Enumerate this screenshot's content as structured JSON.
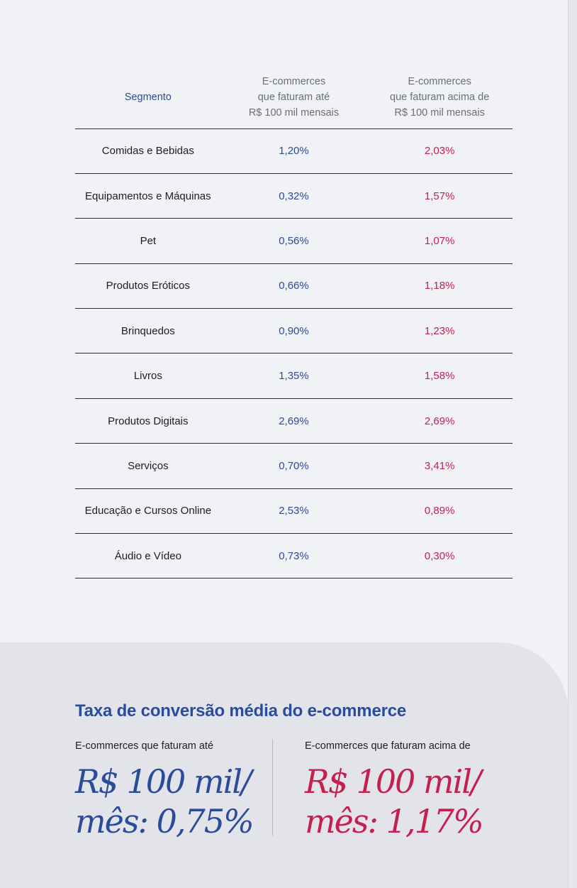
{
  "table": {
    "headers": {
      "segment": "Segmento",
      "low": [
        "E-commerces",
        "que faturam até",
        "R$ 100 mil mensais"
      ],
      "high": [
        "E-commerces",
        "que faturam acima de",
        "R$ 100 mil mensais"
      ]
    },
    "rows": [
      {
        "segment": "Comidas e Bebidas",
        "low": "1,20%",
        "high": "2,03%"
      },
      {
        "segment": "Equipamentos e Máquinas",
        "low": "0,32%",
        "high": "1,57%"
      },
      {
        "segment": "Pet",
        "low": "0,56%",
        "high": "1,07%"
      },
      {
        "segment": "Produtos Eróticos",
        "low": "0,66%",
        "high": "1,18%"
      },
      {
        "segment": "Brinquedos",
        "low": "0,90%",
        "high": "1,23%"
      },
      {
        "segment": "Livros",
        "low": "1,35%",
        "high": "1,58%"
      },
      {
        "segment": "Produtos Digitais",
        "low": "2,69%",
        "high": "2,69%"
      },
      {
        "segment": "Serviços",
        "low": "0,70%",
        "high": "3,41%"
      },
      {
        "segment": "Educação e Cursos Online",
        "low": "2,53%",
        "high": "0,89%"
      },
      {
        "segment": "Áudio e Vídeo",
        "low": "0,73%",
        "high": "0,30%"
      }
    ]
  },
  "summary": {
    "title": "Taxa de conversão média do e-commerce",
    "left": {
      "label": "E-commerces que faturam até",
      "line1": "R$ 100 mil/",
      "line2": "mês: 0,75%"
    },
    "right": {
      "label": "E-commerces que faturam acima de",
      "line1": "R$ 100 mil/",
      "line2": "mês: 1,17%"
    }
  },
  "colors": {
    "blue": "#2b4c9a",
    "red": "#c41f4f",
    "background": "#f0f2f6",
    "panel": "#e2e4ea"
  }
}
